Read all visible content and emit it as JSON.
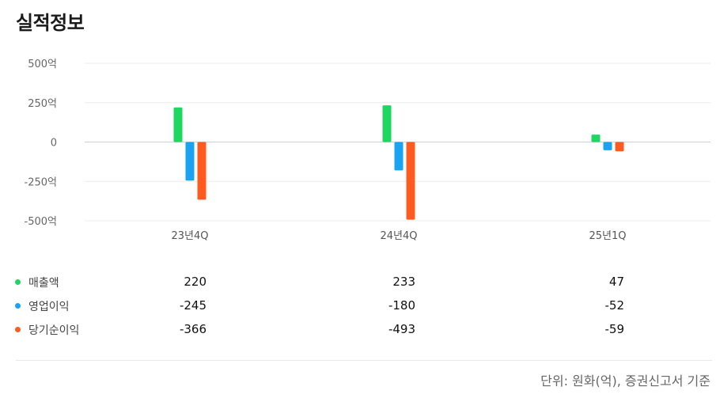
{
  "header": {
    "title": "실적정보"
  },
  "chart_data": {
    "type": "bar",
    "categories": [
      "23년4Q",
      "24년4Q",
      "25년1Q"
    ],
    "series": [
      {
        "name": "매출액",
        "values": [
          220,
          233,
          47
        ],
        "color": "#1ed760"
      },
      {
        "name": "영업이익",
        "values": [
          -245,
          -180,
          -52
        ],
        "color": "#1aa3f0"
      },
      {
        "name": "당기순이익",
        "values": [
          -366,
          -493,
          -59
        ],
        "color": "#ff5a1f"
      }
    ],
    "y_ticks": [
      500,
      250,
      0,
      -250,
      -500
    ],
    "y_tick_labels": [
      "500억",
      "250억",
      "0",
      "-250억",
      "-500억"
    ],
    "ylim": [
      -500,
      500
    ],
    "grid": true,
    "legend": "below"
  },
  "table": {
    "rows": [
      {
        "label": "매출액",
        "values": [
          "220",
          "233",
          "47"
        ]
      },
      {
        "label": "영업이익",
        "values": [
          "-245",
          "-180",
          "-52"
        ]
      },
      {
        "label": "당기순이익",
        "values": [
          "-366",
          "-493",
          "-59"
        ]
      }
    ]
  },
  "footer": {
    "unit_note": "단위: 원화(억), 증권신고서 기준"
  }
}
